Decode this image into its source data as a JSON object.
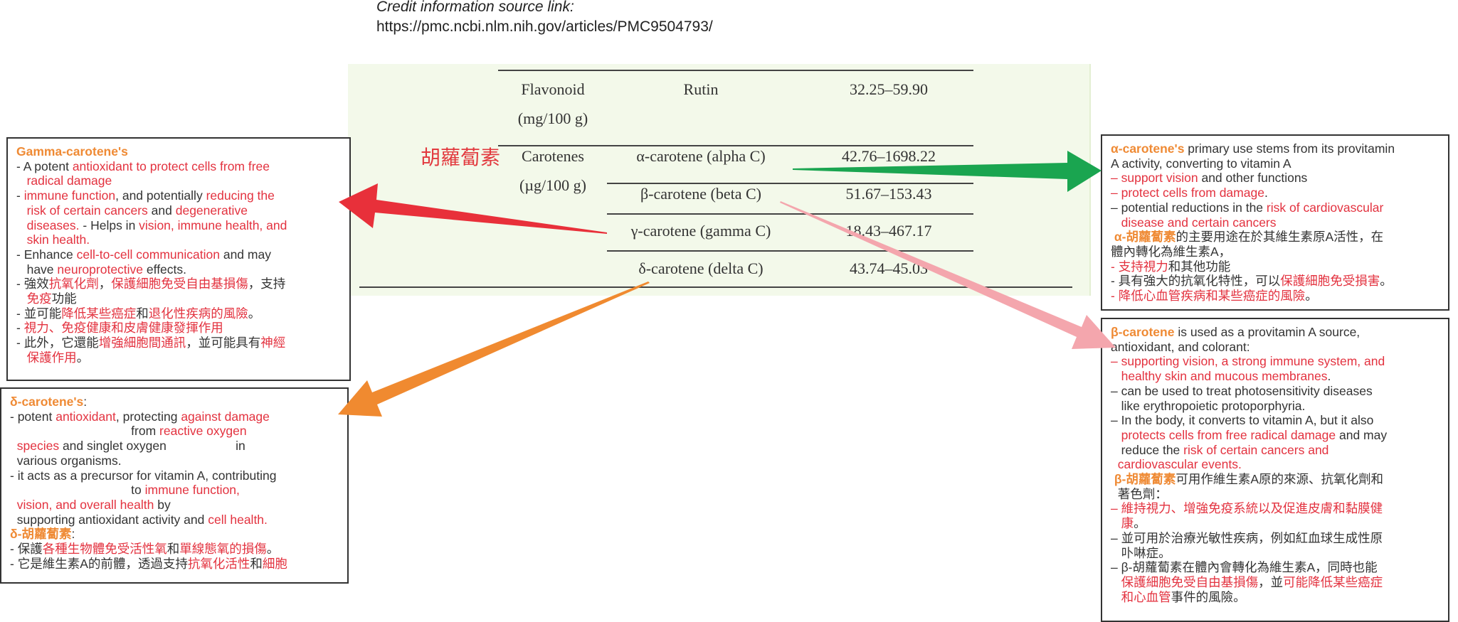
{
  "credit": {
    "label": "Credit information source link:",
    "url": "https://pmc.ncbi.nlm.nih.gov/articles/PMC9504793/"
  },
  "colors": {
    "orange": "#ef8a34",
    "red": "#e3323f",
    "green": "#1aa550",
    "pink": "#f4a6ad",
    "arrow_red": "#e8303a",
    "arrow_orange": "#f08a30"
  },
  "table": {
    "zh_label": "胡蘿蔔素",
    "flavonoid": {
      "class": "Flavonoid",
      "unit": "(mg/100 g)",
      "compound": "Rutin",
      "range": "32.25–59.90"
    },
    "carotenes": {
      "class": "Carotenes",
      "unit": "(µg/100 g)"
    },
    "rows": [
      {
        "compound": "α-carotene (alpha C)",
        "range": "42.76–1698.22"
      },
      {
        "compound": "β-carotene (beta C)",
        "range": "51.67–153.43"
      },
      {
        "compound": "γ-carotene (gamma C)",
        "range": "18.43–467.17"
      },
      {
        "compound": "δ-carotene (delta C)",
        "range": "43.74–45.03"
      }
    ]
  },
  "boxes": {
    "gamma": {
      "lines": [
        [
          [
            "Gamma-carotene's",
            "o"
          ]
        ],
        [
          [
            "- A potent ",
            "n"
          ],
          [
            "antioxidant to protect cells from free",
            "r"
          ]
        ],
        [
          [
            "   ",
            "n"
          ],
          [
            "radical damage",
            "r"
          ]
        ],
        [
          [
            "- ",
            "n"
          ],
          [
            "immune function",
            "r"
          ],
          [
            ", and potentially ",
            "n"
          ],
          [
            "reducing the",
            "r"
          ]
        ],
        [
          [
            "   ",
            "n"
          ],
          [
            "risk of certain cancers",
            "r"
          ],
          [
            " and ",
            "n"
          ],
          [
            "degenerative",
            "r"
          ]
        ],
        [
          [
            "   ",
            "n"
          ],
          [
            "diseases.",
            "r"
          ],
          [
            " - Helps in ",
            "n"
          ],
          [
            "vision, immune health, and",
            "r"
          ]
        ],
        [
          [
            "   ",
            "n"
          ],
          [
            "skin health.",
            "r"
          ]
        ],
        [
          [
            "- Enhance ",
            "n"
          ],
          [
            "cell-to-cell communication",
            "r"
          ],
          [
            " and may",
            "n"
          ]
        ],
        [
          [
            "   have ",
            "n"
          ],
          [
            "neuroprotective",
            "r"
          ],
          [
            " effects.",
            "n"
          ]
        ],
        [
          [
            "- 強效",
            "n"
          ],
          [
            "抗氧化劑",
            "r"
          ],
          [
            "，",
            "n"
          ],
          [
            "保護細胞免受自由基損傷",
            "r"
          ],
          [
            "，支持",
            "n"
          ]
        ],
        [
          [
            "   ",
            "n"
          ],
          [
            "免疫",
            "r"
          ],
          [
            "功能",
            "n"
          ]
        ],
        [
          [
            "- 並可能",
            "n"
          ],
          [
            "降低某些癌症",
            "r"
          ],
          [
            "和",
            "n"
          ],
          [
            "退化性疾病的風險",
            "r"
          ],
          [
            "。",
            "n"
          ]
        ],
        [
          [
            "- ",
            "n"
          ],
          [
            "視力、免疫健康和皮膚健康發揮作用",
            "r"
          ]
        ],
        [
          [
            "- 此外，它還能",
            "n"
          ],
          [
            "增強細胞間通訊",
            "r"
          ],
          [
            "，並可能具有",
            "n"
          ],
          [
            "神經",
            "r"
          ]
        ],
        [
          [
            "   ",
            "n"
          ],
          [
            "保護作用",
            "r"
          ],
          [
            "。",
            "n"
          ]
        ]
      ]
    },
    "delta": {
      "lines": [
        [
          [
            "δ-carotene's",
            "o"
          ],
          [
            ":",
            "n"
          ]
        ],
        [
          [
            "- potent ",
            "n"
          ],
          [
            "antioxidant",
            "r"
          ],
          [
            ", protecting ",
            "n"
          ],
          [
            "against damage",
            "r"
          ]
        ],
        [
          [
            "                                   from ",
            "n"
          ],
          [
            "reactive oxygen",
            "r"
          ]
        ],
        [
          [
            "  ",
            "n"
          ],
          [
            "species",
            "r"
          ],
          [
            " and singlet oxygen                    in",
            "n"
          ]
        ],
        [
          [
            "  various organisms.",
            "n"
          ]
        ],
        [
          [
            "- it acts as a precursor for vitamin A, contributing",
            "n"
          ]
        ],
        [
          [
            "                                   to ",
            "n"
          ],
          [
            "immune function,",
            "r"
          ]
        ],
        [
          [
            "  ",
            "n"
          ],
          [
            "vision, and overall health",
            "r"
          ],
          [
            " by",
            "n"
          ]
        ],
        [
          [
            "  supporting antioxidant activity and ",
            "n"
          ],
          [
            "cell health.",
            "r"
          ]
        ],
        [
          [
            "δ-胡蘿蔔素",
            "o"
          ],
          [
            ":",
            "n"
          ]
        ],
        [
          [
            "- 保護",
            "n"
          ],
          [
            "各種生物體免受活性氧",
            "r"
          ],
          [
            "和",
            "n"
          ],
          [
            "單線態氧的損傷",
            "r"
          ],
          [
            "。",
            "n"
          ]
        ],
        [
          [
            "- 它是維生素A的前體，透過支持",
            "n"
          ],
          [
            "抗氧化活性",
            "r"
          ],
          [
            "和",
            "n"
          ],
          [
            "細胞",
            "r"
          ]
        ]
      ]
    },
    "alpha": {
      "lines": [
        [
          [
            "α-carotene's",
            "o"
          ],
          [
            " primary use stems from its provitamin",
            "n"
          ]
        ],
        [
          [
            "A activity, converting to vitamin A",
            "n"
          ]
        ],
        [
          [
            "– ",
            "r"
          ],
          [
            "support vision",
            "r"
          ],
          [
            " and other functions",
            "n"
          ]
        ],
        [
          [
            "– ",
            "r"
          ],
          [
            "protect cells from damage",
            "r"
          ],
          [
            ".",
            "n"
          ]
        ],
        [
          [
            "– potential reductions in the ",
            "n"
          ],
          [
            "risk of cardiovascular",
            "r"
          ]
        ],
        [
          [
            "   ",
            "n"
          ],
          [
            "disease and certain cancers",
            "r"
          ]
        ],
        [
          [
            " α-胡蘿蔔素",
            "o"
          ],
          [
            "的主要用途在於其維生素原A活性，在",
            "n"
          ]
        ],
        [
          [
            "體內轉化為維生素A，",
            "n"
          ]
        ],
        [
          [
            "- 支持視力",
            "r"
          ],
          [
            "和其他功能",
            "n"
          ]
        ],
        [
          [
            "- 具有強大的抗氧化特性，可以",
            "n"
          ],
          [
            "保護細胞免受損害",
            "r"
          ],
          [
            "。",
            "n"
          ]
        ],
        [
          [
            "- 降低心血管疾病和某些癌症的風險",
            "r"
          ],
          [
            "。",
            "n"
          ]
        ]
      ]
    },
    "beta": {
      "lines": [
        [
          [
            "β-carotene",
            "o"
          ],
          [
            " is used as a provitamin A source,",
            "n"
          ]
        ],
        [
          [
            "antioxidant, and colorant:",
            "n"
          ]
        ],
        [
          [
            "– supporting vision, a strong immune system, and",
            "r"
          ]
        ],
        [
          [
            "   ",
            "n"
          ],
          [
            "healthy skin and mucous membranes",
            "r"
          ],
          [
            ".",
            "n"
          ]
        ],
        [
          [
            "– can be used to treat photosensitivity diseases",
            "n"
          ]
        ],
        [
          [
            "   like erythropoietic protoporphyria.",
            "n"
          ]
        ],
        [
          [
            "– In the body, it converts to vitamin A, but it also",
            "n"
          ]
        ],
        [
          [
            "   ",
            "n"
          ],
          [
            "protects cells from free radical damage",
            "r"
          ],
          [
            " and may",
            "n"
          ]
        ],
        [
          [
            "   reduce the ",
            "n"
          ],
          [
            "risk of certain cancers and",
            "r"
          ]
        ],
        [
          [
            "  ",
            "n"
          ],
          [
            "cardiovascular events.",
            "r"
          ]
        ],
        [
          [
            " β-胡蘿蔔素",
            "o"
          ],
          [
            "可用作維生素A原的來源、抗氧化劑和",
            "n"
          ]
        ],
        [
          [
            "  著色劑：",
            "n"
          ]
        ],
        [
          [
            "– 維持視力、增強免疫系統以及促進皮膚和黏膜健",
            "r"
          ]
        ],
        [
          [
            "   ",
            "n"
          ],
          [
            "康",
            "r"
          ],
          [
            "。",
            "n"
          ]
        ],
        [
          [
            "– 並可用於治療光敏性疾病，例如紅血球生成性原",
            "n"
          ]
        ],
        [
          [
            "   卟啉症。",
            "n"
          ]
        ],
        [
          [
            "– β-胡蘿蔔素在體內會轉化為維生素A，同時也能",
            "n"
          ]
        ],
        [
          [
            "   ",
            "n"
          ],
          [
            "保護細胞免受自由基損傷",
            "r"
          ],
          [
            "，並",
            "n"
          ],
          [
            "可能降低某些癌症",
            "r"
          ]
        ],
        [
          [
            "   ",
            "n"
          ],
          [
            "和心血管",
            "r"
          ],
          [
            "事件的風險。",
            "n"
          ]
        ]
      ]
    }
  }
}
